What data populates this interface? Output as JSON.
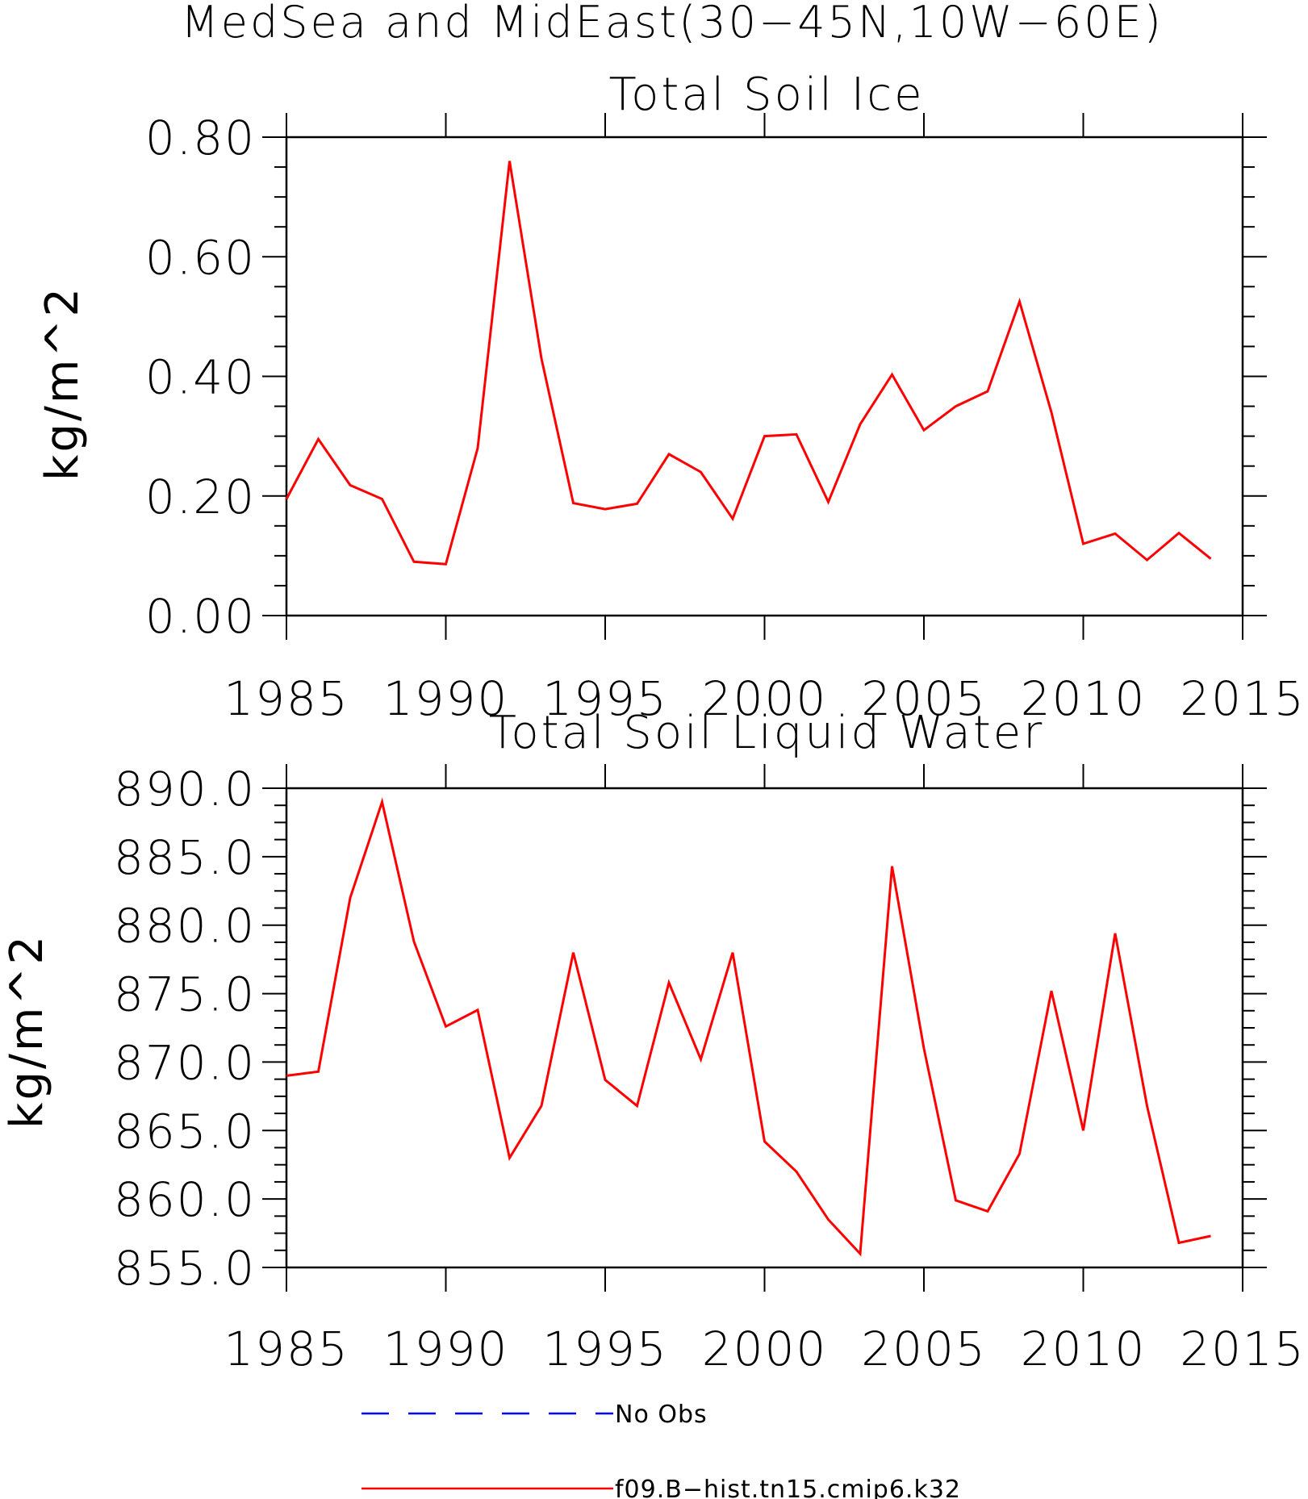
{
  "suptitle": "MedSea and MidEast(30−45N,10W−60E)",
  "colors": {
    "model_line": "#ff0000",
    "obs_line": "#0000ff",
    "axes": "#000000"
  },
  "legend": [
    {
      "label": "No Obs",
      "style": "dashed",
      "color": "#0000ff"
    },
    {
      "label": "f09.B−hist.tn15.cmip6.k32",
      "style": "solid",
      "color": "#ff0000"
    }
  ],
  "chart_data": [
    {
      "type": "line",
      "title": "Total Soil Ice",
      "ylabel": "kg/m^2",
      "xlim": [
        1985,
        2015
      ],
      "ylim": [
        0.0,
        0.8
      ],
      "xticks": [
        1985,
        1990,
        1995,
        2000,
        2005,
        2010,
        2015
      ],
      "yticks": [
        "0.00",
        "0.20",
        "0.40",
        "0.60",
        "0.80"
      ],
      "x": [
        1985,
        1986,
        1987,
        1988,
        1989,
        1990,
        1991,
        1992,
        1993,
        1994,
        1995,
        1996,
        1997,
        1998,
        1999,
        2000,
        2001,
        2002,
        2003,
        2004,
        2005,
        2006,
        2007,
        2008,
        2009,
        2010,
        2011,
        2012,
        2013,
        2014
      ],
      "series": [
        {
          "name": "f09.B−hist.tn15.cmip6.k32",
          "values": [
            0.195,
            0.295,
            0.218,
            0.195,
            0.09,
            0.086,
            0.28,
            0.76,
            0.43,
            0.188,
            0.178,
            0.187,
            0.27,
            0.24,
            0.162,
            0.3,
            0.303,
            0.19,
            0.32,
            0.403,
            0.31,
            0.35,
            0.375,
            0.525,
            0.34,
            0.12,
            0.137,
            0.093,
            0.138,
            0.095
          ]
        }
      ]
    },
    {
      "type": "line",
      "title": "Total Soil Liquid Water",
      "ylabel": "kg/m^2",
      "xlim": [
        1985,
        2015
      ],
      "ylim": [
        855.0,
        890.0
      ],
      "xticks": [
        1985,
        1990,
        1995,
        2000,
        2005,
        2010,
        2015
      ],
      "yticks": [
        "855.0",
        "860.0",
        "865.0",
        "870.0",
        "875.0",
        "880.0",
        "885.0",
        "890.0"
      ],
      "x": [
        1985,
        1986,
        1987,
        1988,
        1989,
        1990,
        1991,
        1992,
        1993,
        1994,
        1995,
        1996,
        1997,
        1998,
        1999,
        2000,
        2001,
        2002,
        2003,
        2004,
        2005,
        2006,
        2007,
        2008,
        2009,
        2010,
        2011,
        2012,
        2013,
        2014
      ],
      "series": [
        {
          "name": "f09.B−hist.tn15.cmip6.k32",
          "values": [
            869.0,
            869.3,
            882.0,
            889.0,
            878.8,
            872.6,
            873.8,
            863.0,
            866.8,
            878.0,
            868.7,
            866.8,
            875.8,
            870.2,
            878.0,
            864.2,
            862.0,
            858.5,
            856.0,
            884.3,
            871.0,
            859.9,
            859.1,
            863.3,
            875.2,
            865.0,
            879.4,
            866.8,
            856.8,
            857.3
          ]
        }
      ]
    }
  ]
}
